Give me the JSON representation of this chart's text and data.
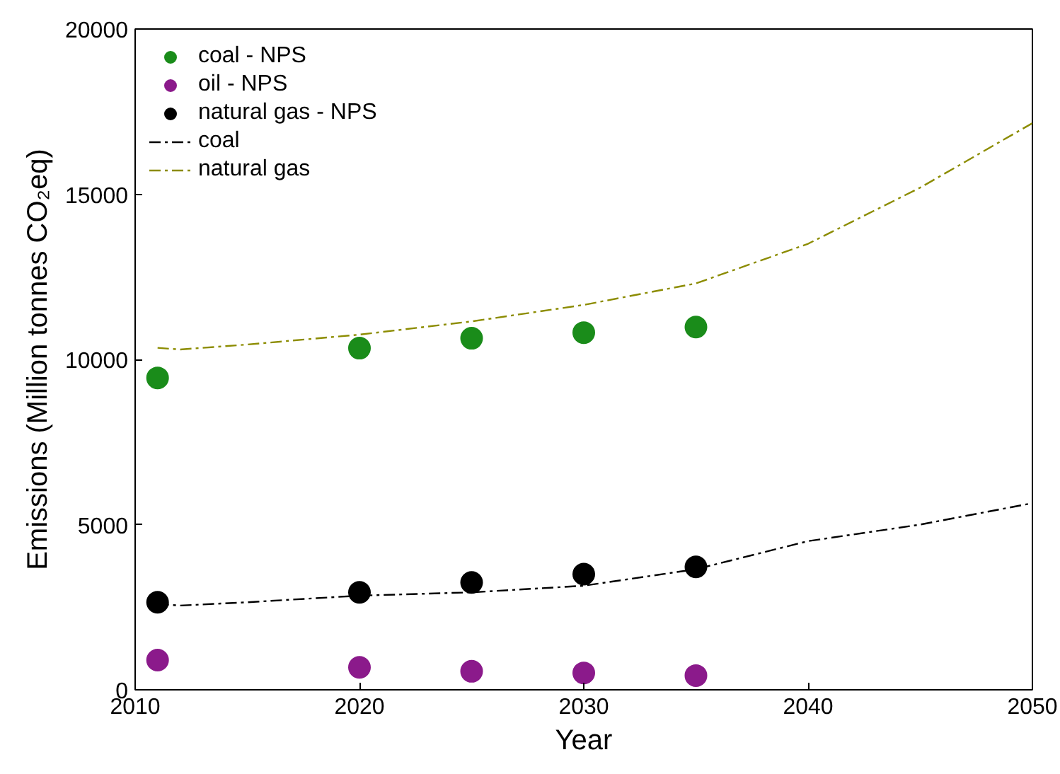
{
  "chart_data": {
    "type": "scatter",
    "xlabel": "Year",
    "ylabel": "Emissions (Million tonnes CO₂eq)",
    "xlim": [
      2010,
      2050
    ],
    "ylim": [
      0,
      20000
    ],
    "xticks": [
      2010,
      2020,
      2030,
      2040,
      2050
    ],
    "yticks": [
      0,
      5000,
      10000,
      15000,
      20000
    ],
    "grid": false,
    "legend": "top left",
    "marker": "circle",
    "series": [
      {
        "name": "coal - NPS",
        "color": "#1a8c1a",
        "x": [
          2011,
          2020,
          2025,
          2030,
          2035
        ],
        "values": [
          9440,
          10340,
          10640,
          10810,
          10980
        ]
      },
      {
        "name": "oil - NPS",
        "color": "#8b1a8b",
        "x": [
          2011,
          2020,
          2025,
          2030,
          2035
        ],
        "values": [
          900,
          680,
          560,
          510,
          430
        ]
      },
      {
        "name": "natural gas - NPS",
        "color": "#000000",
        "x": [
          2011,
          2020,
          2025,
          2030,
          2035
        ],
        "values": [
          2650,
          2950,
          3250,
          3500,
          3720
        ]
      },
      {
        "name": "coal",
        "type": "line",
        "line_style": "dashed",
        "marker": "none",
        "color": "#000000",
        "x": [
          2011,
          2012,
          2015,
          2020,
          2025,
          2030,
          2035,
          2040,
          2045,
          2050
        ],
        "values": [
          2600,
          2550,
          2650,
          2850,
          2950,
          3150,
          3650,
          4500,
          5000,
          5650
        ]
      },
      {
        "name": "natural gas",
        "type": "line",
        "line_style": "dashed",
        "marker": "none",
        "color": "#8c8c00",
        "x": [
          2011,
          2012,
          2015,
          2020,
          2025,
          2030,
          2035,
          2040,
          2045,
          2050
        ],
        "values": [
          10350,
          10300,
          10450,
          10750,
          11150,
          11650,
          12300,
          13500,
          15200,
          17150
        ]
      }
    ]
  }
}
